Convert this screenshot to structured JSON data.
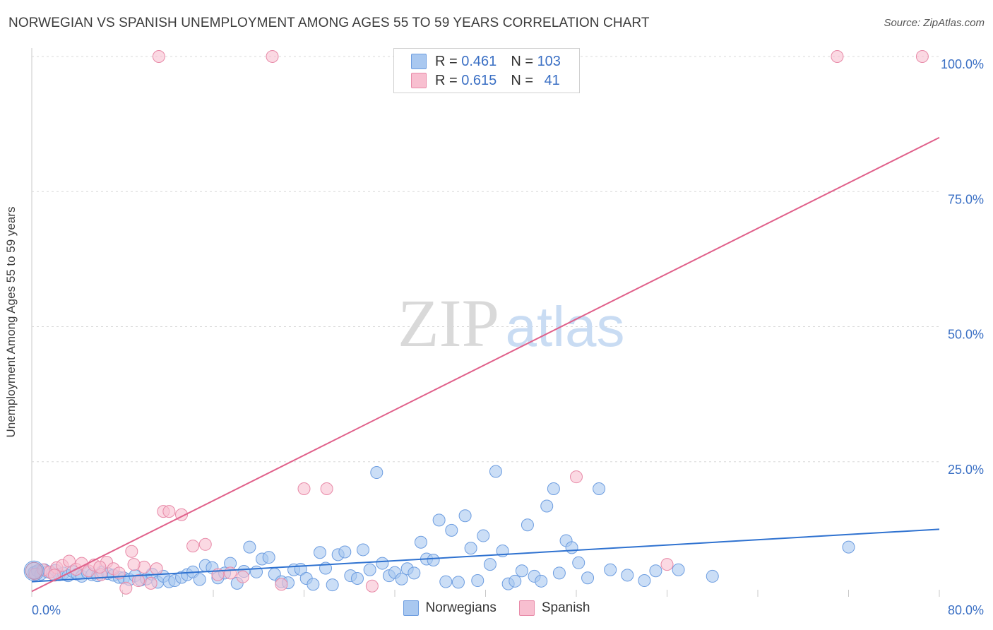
{
  "header": {
    "title": "NORWEGIAN VS SPANISH UNEMPLOYMENT AMONG AGES 55 TO 59 YEARS CORRELATION CHART",
    "source": "Source: ZipAtlas.com"
  },
  "watermark": {
    "part1": "ZIP",
    "part2": "atlas"
  },
  "legend": {
    "rows": [
      {
        "r_label": "R = ",
        "r_value": "0.461",
        "n_label": "N = ",
        "n_value": "103",
        "color": "#a9c8f0",
        "border": "#6d9de0"
      },
      {
        "r_label": "R = ",
        "r_value": "0.615",
        "n_label": "N = ",
        "n_value": "41",
        "color": "#f8bfd0",
        "border": "#e88aa8"
      }
    ]
  },
  "bottom_legend": [
    {
      "label": "Norwegians",
      "color": "#a9c8f0",
      "border": "#6d9de0"
    },
    {
      "label": "Spanish",
      "color": "#f8bfd0",
      "border": "#e88aa8"
    }
  ],
  "chart_data": {
    "type": "scatter",
    "ylabel": "Unemployment Among Ages 55 to 59 years",
    "xlim": [
      0,
      80
    ],
    "ylim": [
      0,
      100
    ],
    "x_tick_labels": [
      "0.0%",
      "80.0%"
    ],
    "y_ticks": [
      25,
      50,
      75,
      100
    ],
    "y_tick_labels": [
      "25.0%",
      "50.0%",
      "75.0%",
      "100.0%"
    ],
    "grid": true,
    "series": [
      {
        "name": "Norwegians",
        "color": "#a9c8f0",
        "stroke": "#6d9de0",
        "line_color": "#2f72d0",
        "trend": {
          "x": [
            0,
            80
          ],
          "y": [
            2.8,
            12.5
          ]
        },
        "points": [
          [
            0.2,
            4.5
          ],
          [
            0.5,
            4.8
          ],
          [
            0.8,
            4.2
          ],
          [
            1.1,
            5.0
          ],
          [
            1.4,
            4.6
          ],
          [
            1.8,
            4.3
          ],
          [
            2.1,
            4.9
          ],
          [
            2.4,
            4.1
          ],
          [
            2.8,
            4.4
          ],
          [
            3.2,
            3.9
          ],
          [
            3.6,
            4.7
          ],
          [
            4.0,
            4.2
          ],
          [
            4.4,
            3.8
          ],
          [
            4.9,
            4.5
          ],
          [
            5.3,
            4.1
          ],
          [
            5.8,
            3.9
          ],
          [
            6.2,
            4.6
          ],
          [
            6.7,
            4.3
          ],
          [
            7.2,
            4.0
          ],
          [
            7.7,
            3.6
          ],
          [
            8.1,
            3.5
          ],
          [
            8.6,
            3.2
          ],
          [
            9.1,
            3.9
          ],
          [
            9.6,
            3.1
          ],
          [
            10.1,
            3.3
          ],
          [
            10.6,
            4.2
          ],
          [
            11.1,
            2.7
          ],
          [
            11.6,
            3.8
          ],
          [
            12.1,
            2.8
          ],
          [
            12.6,
            3.0
          ],
          [
            13.2,
            3.6
          ],
          [
            13.7,
            4.1
          ],
          [
            14.2,
            4.6
          ],
          [
            14.8,
            3.2
          ],
          [
            15.3,
            5.8
          ],
          [
            15.9,
            5.4
          ],
          [
            16.4,
            3.5
          ],
          [
            17.0,
            4.4
          ],
          [
            17.5,
            6.2
          ],
          [
            18.1,
            2.5
          ],
          [
            18.7,
            4.7
          ],
          [
            19.2,
            9.2
          ],
          [
            19.8,
            4.6
          ],
          [
            20.3,
            7.0
          ],
          [
            20.9,
            7.3
          ],
          [
            21.4,
            4.2
          ],
          [
            22.0,
            2.8
          ],
          [
            22.6,
            2.6
          ],
          [
            23.1,
            5.0
          ],
          [
            23.7,
            5.1
          ],
          [
            24.2,
            3.4
          ],
          [
            24.8,
            2.3
          ],
          [
            25.4,
            8.2
          ],
          [
            25.9,
            5.3
          ],
          [
            26.5,
            2.2
          ],
          [
            27.0,
            7.8
          ],
          [
            27.6,
            8.3
          ],
          [
            28.1,
            3.9
          ],
          [
            28.7,
            3.4
          ],
          [
            29.2,
            8.7
          ],
          [
            29.8,
            5.0
          ],
          [
            30.4,
            23.0
          ],
          [
            30.9,
            6.2
          ],
          [
            31.5,
            3.9
          ],
          [
            32.0,
            4.5
          ],
          [
            32.6,
            3.3
          ],
          [
            33.1,
            5.2
          ],
          [
            33.7,
            4.4
          ],
          [
            34.3,
            10.1
          ],
          [
            34.8,
            7.0
          ],
          [
            35.4,
            6.8
          ],
          [
            35.9,
            14.2
          ],
          [
            36.5,
            2.8
          ],
          [
            37.0,
            12.3
          ],
          [
            37.6,
            2.7
          ],
          [
            38.2,
            15.0
          ],
          [
            38.7,
            9.0
          ],
          [
            39.3,
            3.0
          ],
          [
            39.8,
            11.3
          ],
          [
            40.4,
            6.0
          ],
          [
            40.9,
            23.2
          ],
          [
            41.5,
            8.5
          ],
          [
            42.0,
            2.4
          ],
          [
            42.6,
            2.9
          ],
          [
            43.2,
            4.8
          ],
          [
            43.7,
            13.3
          ],
          [
            44.3,
            3.8
          ],
          [
            44.9,
            2.9
          ],
          [
            45.4,
            16.8
          ],
          [
            46.0,
            20.0
          ],
          [
            46.5,
            4.4
          ],
          [
            47.1,
            10.4
          ],
          [
            47.6,
            9.1
          ],
          [
            48.2,
            6.3
          ],
          [
            49.0,
            3.5
          ],
          [
            50.0,
            20.0
          ],
          [
            51.0,
            5.0
          ],
          [
            52.5,
            4.0
          ],
          [
            54.0,
            3.0
          ],
          [
            55.0,
            4.8
          ],
          [
            57.0,
            5.0
          ],
          [
            60.0,
            3.8
          ],
          [
            72.0,
            9.2
          ]
        ],
        "sizes": [
          22
        ]
      },
      {
        "name": "Spanish",
        "color": "#f8bfd0",
        "stroke": "#e88aa8",
        "line_color": "#e0608a",
        "trend": {
          "x": [
            0,
            80
          ],
          "y": [
            1.0,
            85.0
          ]
        },
        "points": [
          [
            0.3,
            4.2
          ],
          [
            1.0,
            5.0
          ],
          [
            1.6,
            4.6
          ],
          [
            2.2,
            5.4
          ],
          [
            2.7,
            5.8
          ],
          [
            3.3,
            6.6
          ],
          [
            3.9,
            5.1
          ],
          [
            4.4,
            6.2
          ],
          [
            5.0,
            4.8
          ],
          [
            5.5,
            5.9
          ],
          [
            6.1,
            4.1
          ],
          [
            6.6,
            6.4
          ],
          [
            7.2,
            5.2
          ],
          [
            7.7,
            4.4
          ],
          [
            8.3,
            1.6
          ],
          [
            8.8,
            8.4
          ],
          [
            9.4,
            3.0
          ],
          [
            9.9,
            5.5
          ],
          [
            10.5,
            2.5
          ],
          [
            11.0,
            5.2
          ],
          [
            11.6,
            15.8
          ],
          [
            12.1,
            15.8
          ],
          [
            13.2,
            15.2
          ],
          [
            14.2,
            9.4
          ],
          [
            15.3,
            9.7
          ],
          [
            16.4,
            4.1
          ],
          [
            17.5,
            4.4
          ],
          [
            18.6,
            3.7
          ],
          [
            22.0,
            2.3
          ],
          [
            24.0,
            20.0
          ],
          [
            26.0,
            20.0
          ],
          [
            30.0,
            2.0
          ],
          [
            11.2,
            100
          ],
          [
            21.2,
            100
          ],
          [
            48.0,
            22.2
          ],
          [
            56.0,
            6.0
          ],
          [
            71.0,
            100
          ],
          [
            78.5,
            100
          ],
          [
            6.0,
            5.5
          ],
          [
            2.0,
            4.0
          ],
          [
            9.0,
            6.0
          ]
        ],
        "sizes": [
          22
        ]
      }
    ]
  }
}
